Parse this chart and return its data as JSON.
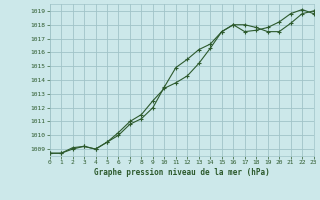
{
  "title": "Graphe pression niveau de la mer (hPa)",
  "bg_color": "#cce8ea",
  "grid_color": "#a0c4c8",
  "line_color": "#2d5a2d",
  "xlim": [
    0,
    23
  ],
  "ylim": [
    1008.5,
    1019.5
  ],
  "yticks": [
    1009,
    1010,
    1011,
    1012,
    1013,
    1014,
    1015,
    1016,
    1017,
    1018,
    1019
  ],
  "xticks": [
    0,
    1,
    2,
    3,
    4,
    5,
    6,
    7,
    8,
    9,
    10,
    11,
    12,
    13,
    14,
    15,
    16,
    17,
    18,
    19,
    20,
    21,
    22,
    23
  ],
  "series1_x": [
    0,
    1,
    2,
    3,
    4,
    5,
    6,
    7,
    8,
    9,
    10,
    11,
    12,
    13,
    14,
    15,
    16,
    17,
    18,
    19,
    20,
    21,
    22,
    23
  ],
  "series1_y": [
    1008.7,
    1008.7,
    1009.0,
    1009.2,
    1009.0,
    1009.5,
    1010.0,
    1010.8,
    1011.2,
    1012.0,
    1013.5,
    1014.9,
    1015.5,
    1016.2,
    1016.6,
    1017.5,
    1018.0,
    1017.5,
    1017.6,
    1017.8,
    1018.2,
    1018.8,
    1019.1,
    1018.8
  ],
  "series2_x": [
    0,
    1,
    2,
    3,
    4,
    5,
    6,
    7,
    8,
    9,
    10,
    11,
    12,
    13,
    14,
    15,
    16,
    17,
    18,
    19,
    20,
    21,
    22,
    23
  ],
  "series2_y": [
    1008.7,
    1008.7,
    1009.1,
    1009.2,
    1009.0,
    1009.5,
    1010.2,
    1011.0,
    1011.5,
    1012.5,
    1013.4,
    1013.8,
    1014.3,
    1015.2,
    1016.3,
    1017.5,
    1018.0,
    1018.0,
    1017.8,
    1017.5,
    1017.5,
    1018.1,
    1018.8,
    1019.0
  ]
}
